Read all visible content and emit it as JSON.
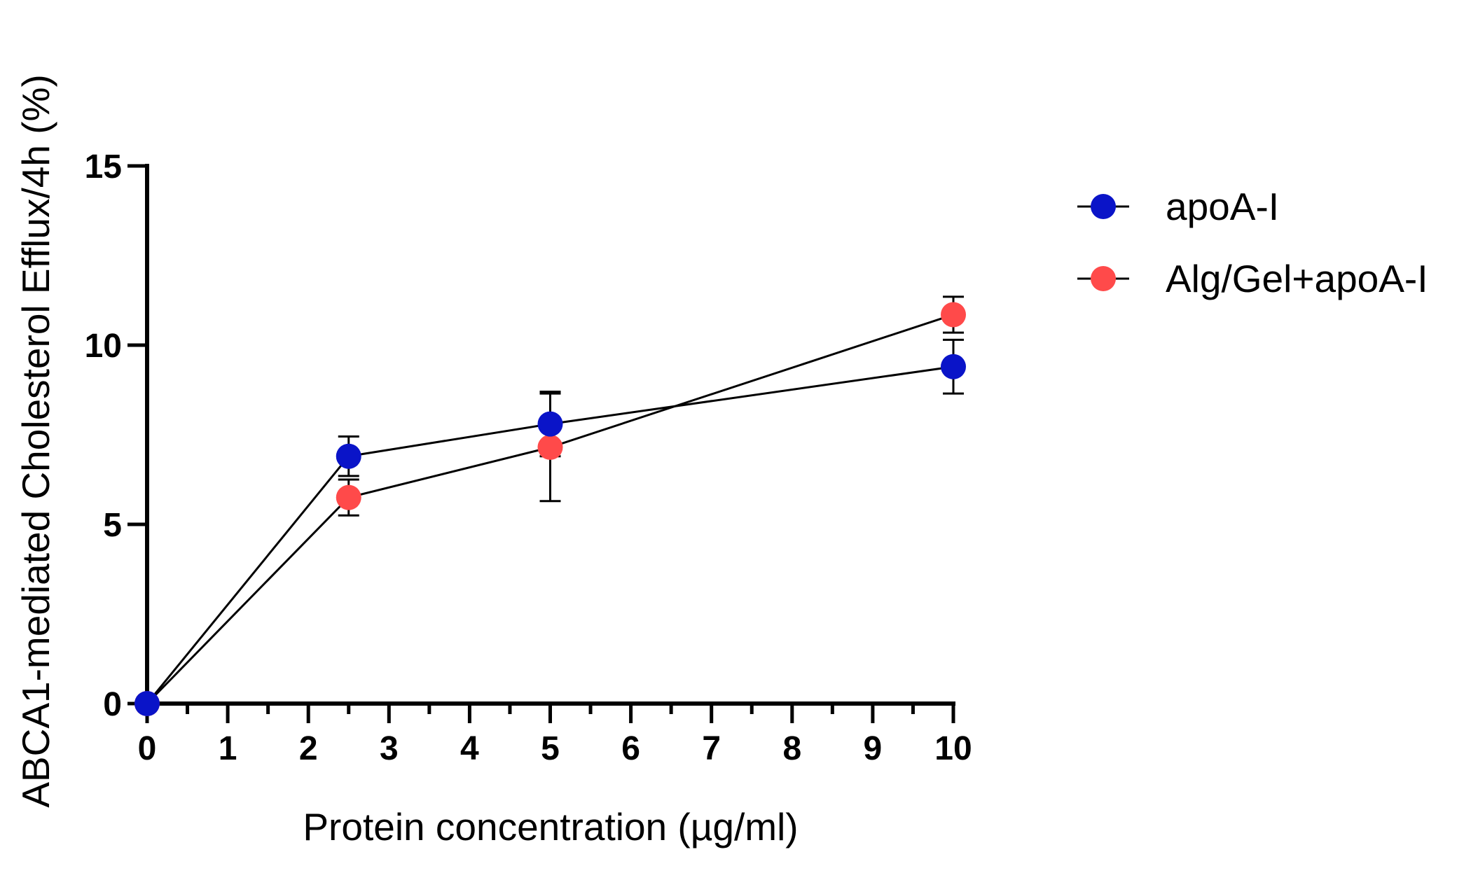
{
  "chart_data": {
    "type": "line",
    "title": "",
    "xlabel": "Protein concentration (µg/ml)",
    "ylabel": "ABCA1-mediated Cholesterol Efflux/4h (%)",
    "xlim": [
      0,
      10
    ],
    "ylim": [
      0,
      15
    ],
    "x_major_ticks": [
      0,
      1,
      2,
      3,
      4,
      5,
      6,
      7,
      8,
      9,
      10
    ],
    "x_minor_ticks": [
      0.5,
      1.5,
      2.5,
      3.5,
      4.5,
      5.5,
      6.5,
      7.5,
      8.5,
      9.5
    ],
    "y_ticks": [
      0,
      5,
      10,
      15
    ],
    "grid": false,
    "legend_position": "top-right outside",
    "series": [
      {
        "name": "apoA-I",
        "color": "#0a14c8",
        "x": [
          0,
          2.5,
          5,
          10
        ],
        "y": [
          0,
          6.9,
          7.8,
          9.4
        ],
        "error": [
          0,
          0.55,
          0.9,
          0.75
        ]
      },
      {
        "name": "Alg/Gel+apoA-I",
        "color": "#ff4a4a",
        "x": [
          0,
          2.5,
          5,
          10
        ],
        "y": [
          0,
          5.75,
          7.15,
          10.85
        ],
        "error": [
          0,
          0.5,
          1.5,
          0.5
        ]
      }
    ]
  }
}
